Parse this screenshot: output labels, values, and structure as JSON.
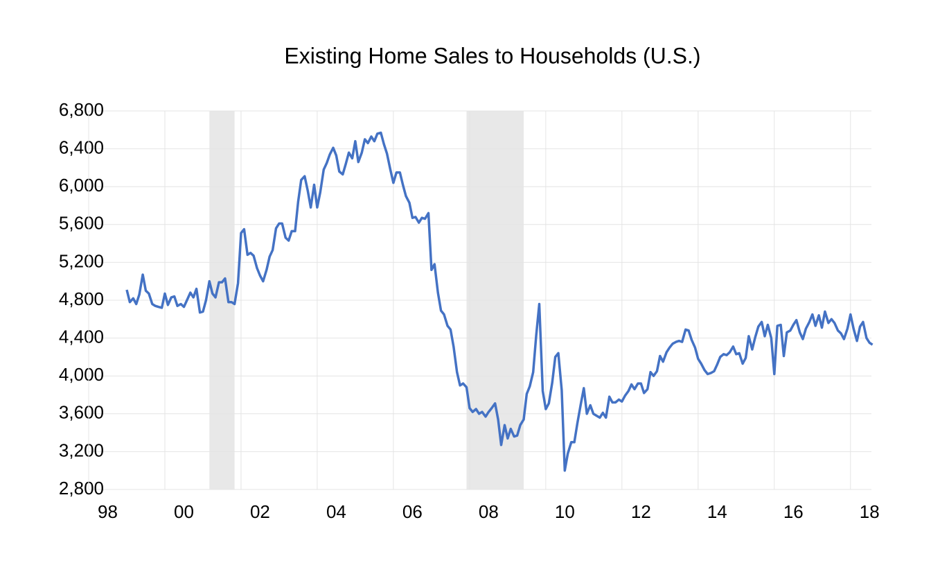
{
  "chart_data": {
    "type": "line",
    "title": "Existing Home Sales to Households (U.S.)",
    "x": [
      1999,
      1999.08,
      1999.17,
      1999.25,
      1999.33,
      1999.42,
      1999.5,
      1999.58,
      1999.67,
      1999.75,
      1999.83,
      1999.92,
      2000,
      2000.08,
      2000.17,
      2000.25,
      2000.33,
      2000.42,
      2000.5,
      2000.58,
      2000.67,
      2000.75,
      2000.83,
      2000.92,
      2001,
      2001.08,
      2001.17,
      2001.25,
      2001.33,
      2001.42,
      2001.5,
      2001.58,
      2001.67,
      2001.75,
      2001.83,
      2001.92,
      2002,
      2002.08,
      2002.17,
      2002.25,
      2002.33,
      2002.42,
      2002.5,
      2002.58,
      2002.67,
      2002.75,
      2002.83,
      2002.92,
      2003,
      2003.08,
      2003.17,
      2003.25,
      2003.33,
      2003.42,
      2003.5,
      2003.58,
      2003.67,
      2003.75,
      2003.83,
      2003.92,
      2004,
      2004.08,
      2004.17,
      2004.25,
      2004.33,
      2004.42,
      2004.5,
      2004.58,
      2004.67,
      2004.75,
      2004.83,
      2004.92,
      2005,
      2005.08,
      2005.17,
      2005.25,
      2005.33,
      2005.42,
      2005.5,
      2005.58,
      2005.67,
      2005.75,
      2005.83,
      2005.92,
      2006,
      2006.08,
      2006.17,
      2006.25,
      2006.33,
      2006.42,
      2006.5,
      2006.58,
      2006.67,
      2006.75,
      2006.83,
      2006.92,
      2007,
      2007.08,
      2007.17,
      2007.25,
      2007.33,
      2007.42,
      2007.5,
      2007.58,
      2007.67,
      2007.75,
      2007.83,
      2007.92,
      2008,
      2008.08,
      2008.17,
      2008.25,
      2008.33,
      2008.42,
      2008.5,
      2008.58,
      2008.67,
      2008.75,
      2008.83,
      2008.92,
      2009,
      2009.08,
      2009.17,
      2009.25,
      2009.33,
      2009.42,
      2009.5,
      2009.58,
      2009.67,
      2009.75,
      2009.83,
      2009.92,
      2010,
      2010.08,
      2010.17,
      2010.25,
      2010.33,
      2010.42,
      2010.5,
      2010.58,
      2010.67,
      2010.75,
      2010.83,
      2010.92,
      2011,
      2011.08,
      2011.17,
      2011.25,
      2011.33,
      2011.42,
      2011.5,
      2011.58,
      2011.67,
      2011.75,
      2011.83,
      2011.92,
      2012,
      2012.08,
      2012.17,
      2012.25,
      2012.33,
      2012.42,
      2012.5,
      2012.58,
      2012.67,
      2012.75,
      2012.83,
      2012.92,
      2013,
      2013.08,
      2013.17,
      2013.25,
      2013.33,
      2013.42,
      2013.5,
      2013.58,
      2013.67,
      2013.75,
      2013.83,
      2013.92,
      2014,
      2014.08,
      2014.17,
      2014.25,
      2014.33,
      2014.42,
      2014.5,
      2014.58,
      2014.67,
      2014.75,
      2014.83,
      2014.92,
      2015,
      2015.08,
      2015.17,
      2015.25,
      2015.33,
      2015.42,
      2015.5,
      2015.58,
      2015.67,
      2015.75,
      2015.83,
      2015.92,
      2016,
      2016.08,
      2016.17,
      2016.25,
      2016.33,
      2016.42,
      2016.5,
      2016.58,
      2016.67,
      2016.75,
      2016.83,
      2016.92,
      2017,
      2017.08,
      2017.17,
      2017.25,
      2017.33,
      2017.42,
      2017.5,
      2017.58,
      2017.67,
      2017.75,
      2017.83,
      2017.92,
      2018,
      2018.08,
      2018.17,
      2018.25,
      2018.33,
      2018.42,
      2018.5,
      2018.58
    ],
    "values": [
      4910,
      4780,
      4820,
      4760,
      4860,
      5070,
      4900,
      4870,
      4760,
      4740,
      4730,
      4720,
      4870,
      4750,
      4830,
      4840,
      4740,
      4760,
      4730,
      4800,
      4880,
      4830,
      4920,
      4670,
      4680,
      4800,
      5000,
      4870,
      4830,
      4990,
      4990,
      5030,
      4780,
      4780,
      4760,
      4980,
      5510,
      5550,
      5280,
      5300,
      5270,
      5140,
      5060,
      5000,
      5120,
      5260,
      5330,
      5560,
      5610,
      5610,
      5460,
      5430,
      5530,
      5530,
      5840,
      6070,
      6110,
      5960,
      5780,
      6020,
      5780,
      5940,
      6180,
      6250,
      6340,
      6410,
      6330,
      6160,
      6130,
      6240,
      6360,
      6300,
      6480,
      6260,
      6360,
      6500,
      6460,
      6530,
      6480,
      6560,
      6570,
      6450,
      6350,
      6180,
      6040,
      6150,
      6150,
      6020,
      5900,
      5830,
      5670,
      5680,
      5620,
      5670,
      5660,
      5720,
      5120,
      5180,
      4880,
      4690,
      4650,
      4530,
      4490,
      4310,
      4040,
      3900,
      3920,
      3880,
      3660,
      3620,
      3650,
      3600,
      3620,
      3570,
      3620,
      3660,
      3710,
      3540,
      3270,
      3480,
      3340,
      3440,
      3360,
      3370,
      3480,
      3540,
      3810,
      3890,
      4040,
      4430,
      4760,
      3840,
      3650,
      3710,
      3930,
      4200,
      4240,
      3850,
      3000,
      3180,
      3300,
      3300,
      3500,
      3700,
      3870,
      3600,
      3690,
      3600,
      3580,
      3560,
      3610,
      3560,
      3780,
      3720,
      3720,
      3750,
      3730,
      3790,
      3840,
      3910,
      3860,
      3920,
      3920,
      3820,
      3860,
      4040,
      4000,
      4050,
      4210,
      4150,
      4250,
      4300,
      4340,
      4360,
      4370,
      4360,
      4490,
      4480,
      4380,
      4300,
      4180,
      4130,
      4060,
      4020,
      4030,
      4050,
      4120,
      4200,
      4230,
      4220,
      4250,
      4310,
      4230,
      4240,
      4130,
      4190,
      4420,
      4280,
      4410,
      4520,
      4570,
      4420,
      4540,
      4400,
      4020,
      4530,
      4540,
      4210,
      4460,
      4480,
      4540,
      4590,
      4460,
      4390,
      4500,
      4570,
      4650,
      4530,
      4640,
      4510,
      4680,
      4560,
      4600,
      4560,
      4480,
      4450,
      4390,
      4500,
      4650,
      4500,
      4370,
      4520,
      4570,
      4400,
      4350,
      4330
    ],
    "color": "#4472c4",
    "shaded_regions": [
      [
        2001.17,
        2001.83
      ],
      [
        2007.92,
        2009.42
      ]
    ],
    "shade_color": "#e8e8e8",
    "xlim": [
      1998,
      2018.55
    ],
    "xticks": [
      {
        "value": 1998,
        "label": "98"
      },
      {
        "value": 2000,
        "label": "00"
      },
      {
        "value": 2002,
        "label": "02"
      },
      {
        "value": 2004,
        "label": "04"
      },
      {
        "value": 2006,
        "label": "06"
      },
      {
        "value": 2008,
        "label": "08"
      },
      {
        "value": 2010,
        "label": "10"
      },
      {
        "value": 2012,
        "label": "12"
      },
      {
        "value": 2014,
        "label": "14"
      },
      {
        "value": 2016,
        "label": "16"
      },
      {
        "value": 2018,
        "label": "18"
      }
    ],
    "ylim": [
      2800,
      6800
    ],
    "yticks": [
      {
        "value": 2800,
        "label": "2,800"
      },
      {
        "value": 3200,
        "label": "3,200"
      },
      {
        "value": 3600,
        "label": "3,600"
      },
      {
        "value": 4000,
        "label": "4,000"
      },
      {
        "value": 4400,
        "label": "4,400"
      },
      {
        "value": 4800,
        "label": "4,800"
      },
      {
        "value": 5200,
        "label": "5,200"
      },
      {
        "value": 5600,
        "label": "5,600"
      },
      {
        "value": 6000,
        "label": "6,000"
      },
      {
        "value": 6400,
        "label": "6,400"
      },
      {
        "value": 6800,
        "label": "6,800"
      }
    ],
    "grid": true
  }
}
